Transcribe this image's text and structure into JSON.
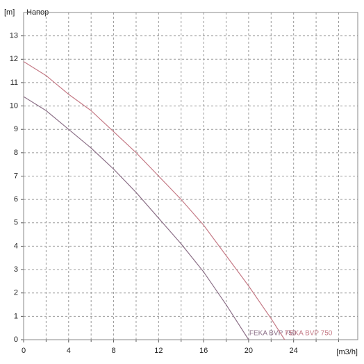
{
  "chart_data": {
    "type": "line",
    "title": "Напор",
    "y_label": "[m]",
    "x_label": "[m3/h]",
    "xlim": [
      0,
      29.7
    ],
    "ylim": [
      0,
      14
    ],
    "xticks": [
      0,
      4,
      8,
      12,
      16,
      20,
      24
    ],
    "xminorticks": [
      2,
      6,
      10,
      14,
      18,
      22,
      26,
      28
    ],
    "yticks": [
      0,
      1,
      2,
      3,
      4,
      5,
      6,
      7,
      8,
      9,
      10,
      11,
      12,
      13
    ],
    "grid": true,
    "series": [
      {
        "name": "FEKA BVP 750",
        "color": "#8c7088",
        "x": [
          0,
          2,
          4,
          6,
          8,
          10,
          12,
          14,
          16,
          18,
          20
        ],
        "values": [
          10.4,
          9.8,
          9.0,
          8.2,
          7.3,
          6.3,
          5.2,
          4.1,
          2.9,
          1.5,
          0
        ]
      },
      {
        "name": "FEKA BVP 750",
        "color": "#c57a86",
        "x": [
          0,
          2,
          4,
          6,
          8,
          10,
          12,
          14,
          16,
          18,
          20,
          22,
          23.2
        ],
        "values": [
          11.9,
          11.3,
          10.5,
          9.8,
          8.9,
          8.0,
          7.0,
          6.0,
          4.9,
          3.6,
          2.3,
          0.9,
          0
        ]
      }
    ]
  }
}
